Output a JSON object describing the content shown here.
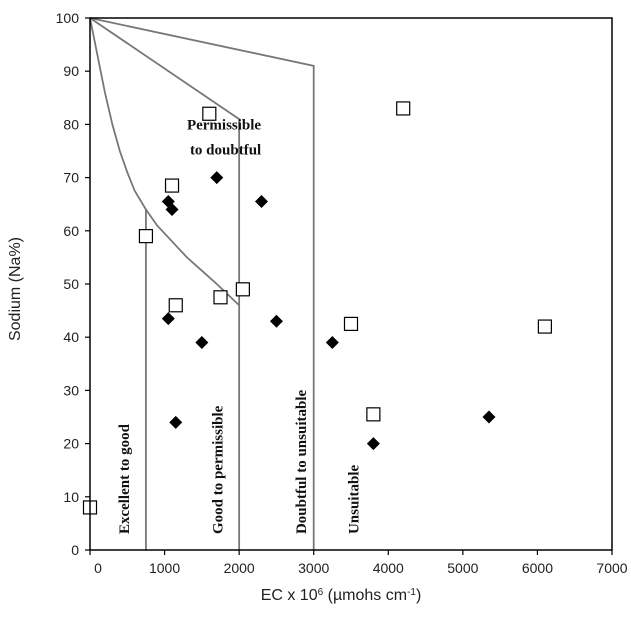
{
  "chart_data": {
    "type": "scatter",
    "title": "",
    "xlabel": "EC x 10",
    "xlabel_sup": "6",
    "xlabel_unit": " (µmohs cm",
    "xlabel_unit_sup": "-1",
    "xlabel_close": ")",
    "ylabel": "Sodium (Na%)",
    "xlim": [
      0,
      7000
    ],
    "ylim": [
      0,
      100
    ],
    "x_ticks": [
      {
        "value": 0,
        "label": "0"
      },
      {
        "value": 1000,
        "label": "1000"
      },
      {
        "value": 2000,
        "label": "2000"
      },
      {
        "value": 3000,
        "label": "3000"
      },
      {
        "value": 4000,
        "label": "4000"
      },
      {
        "value": 5000,
        "label": "5000"
      },
      {
        "value": 6000,
        "label": "6000"
      },
      {
        "value": 7000,
        "label": "7000"
      }
    ],
    "y_ticks": [
      {
        "value": 0,
        "label": "0"
      },
      {
        "value": 10,
        "label": "10"
      },
      {
        "value": 20,
        "label": "20"
      },
      {
        "value": 30,
        "label": "30"
      },
      {
        "value": 40,
        "label": "40"
      },
      {
        "value": 50,
        "label": "50"
      },
      {
        "value": 60,
        "label": "60"
      },
      {
        "value": 70,
        "label": "70"
      },
      {
        "value": 80,
        "label": "80"
      },
      {
        "value": 90,
        "label": "90"
      },
      {
        "value": 100,
        "label": "100"
      }
    ],
    "grid": false,
    "series": [
      {
        "marker": "open-square",
        "color": "#000000",
        "points": [
          {
            "x": 0,
            "y": 8
          },
          {
            "x": 750,
            "y": 59
          },
          {
            "x": 1100,
            "y": 68.5
          },
          {
            "x": 1150,
            "y": 46
          },
          {
            "x": 1600,
            "y": 82
          },
          {
            "x": 1750,
            "y": 47.5
          },
          {
            "x": 2050,
            "y": 49
          },
          {
            "x": 3500,
            "y": 42.5
          },
          {
            "x": 3800,
            "y": 25.5
          },
          {
            "x": 4200,
            "y": 83
          },
          {
            "x": 6100,
            "y": 42
          }
        ]
      },
      {
        "marker": "filled-diamond",
        "color": "#000000",
        "points": [
          {
            "x": 1050,
            "y": 65.5
          },
          {
            "x": 1100,
            "y": 64
          },
          {
            "x": 1050,
            "y": 43.5
          },
          {
            "x": 1150,
            "y": 24
          },
          {
            "x": 1500,
            "y": 39
          },
          {
            "x": 1700,
            "y": 70
          },
          {
            "x": 2300,
            "y": 65.5
          },
          {
            "x": 2500,
            "y": 43
          },
          {
            "x": 3250,
            "y": 39
          },
          {
            "x": 3800,
            "y": 20
          },
          {
            "x": 5350,
            "y": 25
          }
        ]
      }
    ],
    "boundaries": [
      {
        "name": "line-0-100-to-3000-91",
        "points": [
          [
            0,
            100
          ],
          [
            3000,
            91
          ],
          [
            3000,
            0
          ]
        ]
      },
      {
        "name": "line-0-100-to-2000-81",
        "points": [
          [
            0,
            100
          ],
          [
            2000,
            81
          ],
          [
            2000,
            0
          ]
        ]
      },
      {
        "name": "curve-0-100-to-2000-46",
        "points": [
          [
            0,
            100
          ],
          [
            100,
            93
          ],
          [
            200,
            86
          ],
          [
            300,
            80
          ],
          [
            400,
            75
          ],
          [
            500,
            71
          ],
          [
            600,
            67.5
          ],
          [
            750,
            64
          ],
          [
            900,
            61
          ],
          [
            1100,
            58
          ],
          [
            1300,
            55
          ],
          [
            1500,
            52.5
          ],
          [
            1700,
            50
          ],
          [
            1850,
            48
          ],
          [
            2000,
            46
          ]
        ]
      },
      {
        "name": "line-750-vertical",
        "points": [
          [
            750,
            64
          ],
          [
            750,
            0
          ]
        ]
      }
    ],
    "region_labels": [
      {
        "name": "permissible-to-doubtful",
        "lines": [
          "Permissible",
          "to doubtful"
        ],
        "x": 1300,
        "y": 79,
        "rotate": false
      },
      {
        "name": "excellent-to-good",
        "lines": [
          "Excellent to good"
        ],
        "x": 520,
        "y": 3,
        "rotate": true
      },
      {
        "name": "good-to-permissible",
        "lines": [
          "Good to permissible"
        ],
        "x": 1780,
        "y": 3,
        "rotate": true
      },
      {
        "name": "doubtful-to-unsuitable",
        "lines": [
          "Doubtful  to unsuitable"
        ],
        "x": 2900,
        "y": 3,
        "rotate": true
      },
      {
        "name": "unsuitable",
        "lines": [
          "Unsuitable"
        ],
        "x": 3600,
        "y": 3,
        "rotate": true
      }
    ]
  }
}
